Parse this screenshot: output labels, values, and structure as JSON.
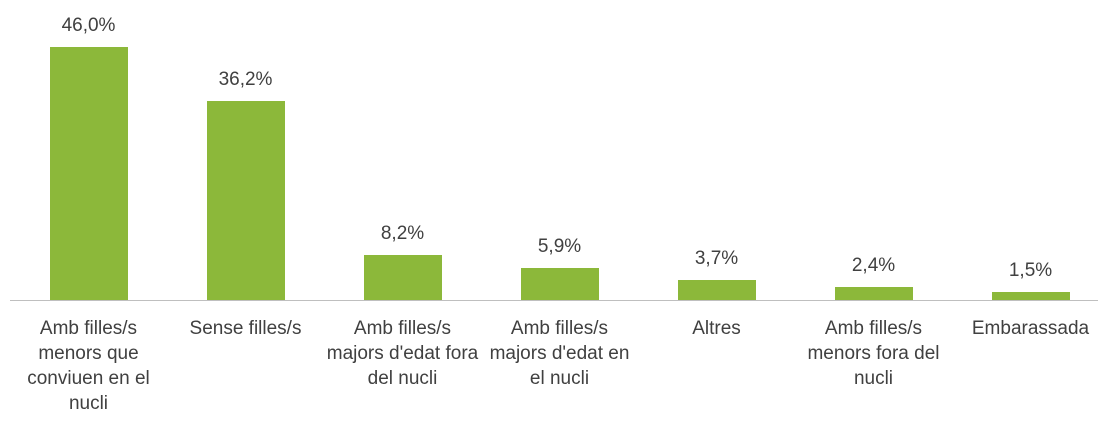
{
  "chart_data": {
    "type": "bar",
    "categories": [
      "Amb filles/s menors que conviuen en el nucli",
      "Sense filles/s",
      "Amb filles/s majors d'edat fora del nucli",
      "Amb filles/s majors d'edat en el nucli",
      "Altres",
      "Amb filles/s menors fora del nucli",
      "Embarassada"
    ],
    "values": [
      46.0,
      36.2,
      8.2,
      5.9,
      3.7,
      2.4,
      1.5
    ],
    "value_labels": [
      "46,0%",
      "36,2%",
      "8,2%",
      "5,9%",
      "3,7%",
      "2,4%",
      "1,5%"
    ],
    "color": "#8cb83a"
  }
}
